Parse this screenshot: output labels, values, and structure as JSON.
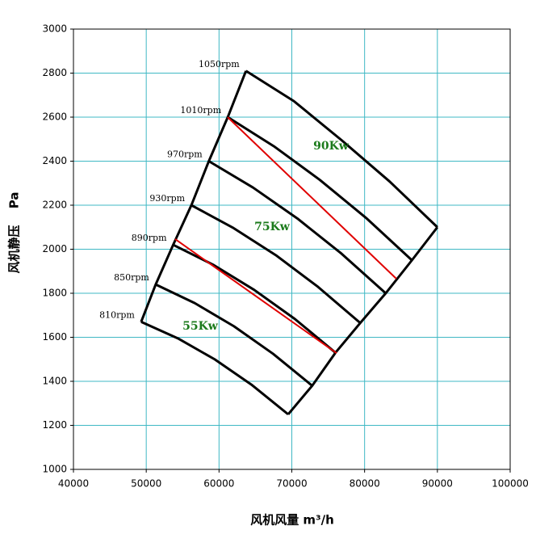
{
  "chart_data": {
    "type": "line",
    "x_label": "风机风量  m³/h",
    "y_label": "风机静压　 Pa",
    "xlim": [
      40000,
      100000
    ],
    "xticks": [
      40000,
      50000,
      60000,
      70000,
      80000,
      90000,
      100000
    ],
    "ylim": [
      1000,
      3000
    ],
    "yticks": [
      1000,
      1200,
      1400,
      1600,
      1800,
      2000,
      2200,
      2400,
      2600,
      2800,
      3000
    ],
    "grid": true,
    "series": [
      {
        "name": "810rpm",
        "color": "#000000",
        "x": [
          49300,
          54350,
          59400,
          64450,
          69500
        ],
        "y": [
          1670,
          1595,
          1500,
          1385,
          1250
        ]
      },
      {
        "name": "850rpm",
        "color": "#000000",
        "x": [
          51300,
          56675,
          62050,
          67425,
          72800
        ],
        "y": [
          1840,
          1755,
          1650,
          1525,
          1380
        ]
      },
      {
        "name": "890rpm",
        "color": "#000000",
        "x": [
          53700,
          59275,
          64850,
          70425,
          76000
        ],
        "y": [
          2020,
          1928,
          1815,
          1683,
          1530
        ]
      },
      {
        "name": "930rpm",
        "color": "#000000",
        "x": [
          56200,
          62000,
          67800,
          73600,
          79400
        ],
        "y": [
          2200,
          2096,
          1973,
          1829,
          1665
        ]
      },
      {
        "name": "970rpm",
        "color": "#000000",
        "x": [
          58600,
          64675,
          70750,
          76825,
          82900
        ],
        "y": [
          2400,
          2280,
          2140,
          1980,
          1800
        ]
      },
      {
        "name": "1010rpm",
        "color": "#000000",
        "x": [
          61200,
          67525,
          73850,
          80175,
          86500
        ],
        "y": [
          2600,
          2468,
          2315,
          2143,
          1950
        ]
      },
      {
        "name": "1050rpm",
        "color": "#000000",
        "x": [
          63700,
          70275,
          76850,
          83425,
          90000
        ],
        "y": [
          2810,
          2673,
          2495,
          2308,
          2100
        ]
      }
    ],
    "reference_lines": [
      {
        "color": "#e00000",
        "x": [
          53970,
          76150
        ],
        "y": [
          2046,
          1528
        ]
      },
      {
        "color": "#e00000",
        "x": [
          61180,
          84360
        ],
        "y": [
          2600,
          1866
        ]
      }
    ],
    "annotations": [
      {
        "text": "90Kw",
        "x": 75380,
        "y": 2468,
        "color": "#1a7a1a"
      },
      {
        "text": "75Kw",
        "x": 67280,
        "y": 2101,
        "color": "#1a7a1a"
      },
      {
        "text": "55Kw",
        "x": 57410,
        "y": 1650,
        "color": "#1a7a1a"
      }
    ]
  }
}
